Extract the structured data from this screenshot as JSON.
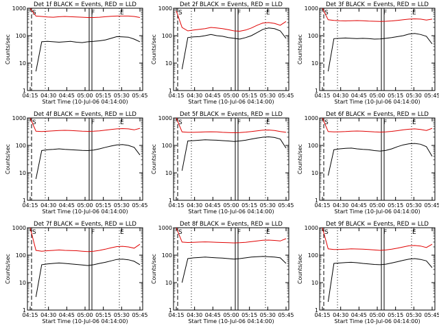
{
  "colors": {
    "events": "#000000",
    "lld": "#e00000",
    "axes": "#000000"
  },
  "chart_data": [
    {
      "type": "line",
      "title": "Det 1f BLACK = Events, RED = LLD",
      "xlabel": "Start Time (10-Jul-06 04:14:00)",
      "ylabel": "Counts/sec",
      "x_ticks": [
        "04:15",
        "04:30",
        "04:45",
        "05:00",
        "05:15",
        "05:30",
        "05:45"
      ],
      "y_ticks": [
        "1",
        "10",
        "100",
        "1000"
      ],
      "y_scale": "log",
      "ylim": [
        1,
        1000
      ],
      "markers": [
        "S",
        "F",
        "E"
      ],
      "series": [
        {
          "name": "Events",
          "values": [
            null,
            5,
            60,
            62,
            60,
            58,
            60,
            62,
            58,
            56,
            60,
            62,
            65,
            70,
            80,
            92,
            90,
            88,
            75,
            60
          ]
        },
        {
          "name": "LLD",
          "values": [
            1000,
            520,
            500,
            480,
            470,
            490,
            500,
            490,
            480,
            470,
            460,
            460,
            470,
            490,
            510,
            520,
            520,
            520,
            500,
            460
          ]
        }
      ]
    },
    {
      "type": "line",
      "title": "Det 2f BLACK = Events, RED = LLD",
      "xlabel": "Start Time (10-Jul-06 04:14:00)",
      "ylabel": "Counts/sec",
      "x_ticks": [
        "04:15",
        "04:30",
        "04:45",
        "05:00",
        "05:15",
        "05:30",
        "05:45"
      ],
      "y_ticks": [
        "1",
        "10",
        "100",
        "1000"
      ],
      "y_scale": "log",
      "ylim": [
        1,
        1000
      ],
      "markers": [
        "S",
        "F",
        "E"
      ],
      "series": [
        {
          "name": "Events",
          "values": [
            null,
            6,
            85,
            90,
            92,
            100,
            110,
            100,
            95,
            85,
            80,
            75,
            85,
            100,
            130,
            170,
            190,
            180,
            150,
            80
          ]
        },
        {
          "name": "LLD",
          "values": [
            800,
            200,
            150,
            160,
            170,
            180,
            200,
            190,
            180,
            165,
            150,
            145,
            160,
            190,
            240,
            290,
            300,
            280,
            240,
            330
          ]
        }
      ]
    },
    {
      "type": "line",
      "title": "Det 3f BLACK = Events, RED = LLD",
      "xlabel": "Start Time (10-Jul-06 04:14:00)",
      "ylabel": "Counts/sec",
      "x_ticks": [
        "04:15",
        "04:30",
        "04:45",
        "05:00",
        "05:15",
        "05:30",
        "05:45"
      ],
      "y_ticks": [
        "1",
        "10",
        "100",
        "1000"
      ],
      "y_scale": "log",
      "ylim": [
        1,
        1000
      ],
      "markers": [
        "S",
        "F",
        "E"
      ],
      "series": [
        {
          "name": "Events",
          "values": [
            null,
            5,
            78,
            80,
            82,
            80,
            78,
            80,
            78,
            75,
            76,
            80,
            85,
            92,
            100,
            115,
            120,
            110,
            95,
            50
          ]
        },
        {
          "name": "LLD",
          "values": [
            1000,
            380,
            360,
            350,
            345,
            350,
            355,
            350,
            340,
            335,
            330,
            335,
            345,
            360,
            380,
            400,
            410,
            400,
            370,
            400
          ]
        }
      ]
    },
    {
      "type": "line",
      "title": "Det 4f BLACK = Events, RED = LLD",
      "xlabel": "Start Time (10-Jul-06 04:14:00)",
      "ylabel": "Counts/sec",
      "x_ticks": [
        "04:15",
        "04:30",
        "04:45",
        "05:00",
        "05:15",
        "05:30",
        "05:45"
      ],
      "y_ticks": [
        "1",
        "10",
        "100",
        "1000"
      ],
      "y_scale": "log",
      "ylim": [
        1,
        1000
      ],
      "markers": [
        "S",
        "F",
        "E"
      ],
      "series": [
        {
          "name": "Events",
          "values": [
            null,
            6,
            65,
            70,
            72,
            75,
            72,
            70,
            68,
            66,
            65,
            68,
            75,
            85,
            95,
            105,
            108,
            100,
            85,
            45
          ]
        },
        {
          "name": "LLD",
          "values": [
            1000,
            330,
            320,
            330,
            340,
            350,
            355,
            350,
            340,
            330,
            325,
            330,
            340,
            360,
            380,
            400,
            410,
            400,
            370,
            420
          ]
        }
      ]
    },
    {
      "type": "line",
      "title": "Det 5f BLACK = Events, RED = LLD",
      "xlabel": "Start Time (10-Jul-06 04:14:00)",
      "ylabel": "Counts/sec",
      "x_ticks": [
        "04:15",
        "04:30",
        "04:45",
        "05:00",
        "05:15",
        "05:30",
        "05:45"
      ],
      "y_ticks": [
        "1",
        "10",
        "100",
        "1000"
      ],
      "y_scale": "log",
      "ylim": [
        1,
        1000
      ],
      "markers": [
        "S",
        "F",
        "E"
      ],
      "series": [
        {
          "name": "Events",
          "values": [
            null,
            12,
            145,
            150,
            155,
            160,
            158,
            155,
            150,
            145,
            140,
            145,
            155,
            170,
            185,
            200,
            205,
            195,
            170,
            80
          ]
        },
        {
          "name": "LLD",
          "values": [
            1000,
            310,
            300,
            300,
            305,
            310,
            315,
            310,
            300,
            295,
            290,
            295,
            305,
            320,
            340,
            360,
            365,
            350,
            320,
            300
          ]
        }
      ]
    },
    {
      "type": "line",
      "title": "Det 6f BLACK = Events, RED = LLD",
      "xlabel": "Start Time (10-Jul-06 04:14:00)",
      "ylabel": "Counts/sec",
      "x_ticks": [
        "04:15",
        "04:30",
        "04:45",
        "05:00",
        "05:15",
        "05:30",
        "05:45"
      ],
      "y_ticks": [
        "1",
        "10",
        "100",
        "1000"
      ],
      "y_scale": "log",
      "ylim": [
        1,
        1000
      ],
      "markers": [
        "S",
        "F",
        "E"
      ],
      "series": [
        {
          "name": "Events",
          "values": [
            null,
            8,
            70,
            75,
            78,
            80,
            75,
            72,
            70,
            65,
            62,
            66,
            75,
            90,
            105,
            115,
            118,
            110,
            90,
            40
          ]
        },
        {
          "name": "LLD",
          "values": [
            1000,
            320,
            310,
            315,
            320,
            330,
            335,
            330,
            320,
            310,
            305,
            310,
            325,
            345,
            370,
            390,
            400,
            380,
            350,
            420
          ]
        }
      ]
    },
    {
      "type": "line",
      "title": "Det 7f BLACK = Events, RED = LLD",
      "xlabel": "Start Time (10-Jul-06 04:14:00)",
      "ylabel": "Counts/sec",
      "x_ticks": [
        "04:15",
        "04:30",
        "04:45",
        "05:00",
        "05:15",
        "05:30",
        "05:45"
      ],
      "y_ticks": [
        "1",
        "10",
        "100",
        "1000"
      ],
      "y_scale": "log",
      "ylim": [
        1,
        1000
      ],
      "markers": [
        "S",
        "F",
        "E"
      ],
      "series": [
        {
          "name": "Events",
          "values": [
            null,
            3,
            45,
            48,
            50,
            52,
            50,
            48,
            46,
            44,
            42,
            45,
            50,
            55,
            62,
            70,
            72,
            68,
            60,
            45
          ]
        },
        {
          "name": "LLD",
          "values": [
            1000,
            150,
            140,
            145,
            150,
            155,
            150,
            148,
            145,
            140,
            135,
            140,
            150,
            165,
            185,
            205,
            210,
            200,
            180,
            250
          ]
        }
      ]
    },
    {
      "type": "line",
      "title": "Det 8f BLACK = Events, RED = LLD",
      "xlabel": "Start Time (10-Jul-06 04:14:00)",
      "ylabel": "Counts/sec",
      "x_ticks": [
        "04:15",
        "04:30",
        "04:45",
        "05:00",
        "05:15",
        "05:30",
        "05:45"
      ],
      "y_ticks": [
        "1",
        "10",
        "100",
        "1000"
      ],
      "y_scale": "log",
      "ylim": [
        1,
        1000
      ],
      "markers": [
        "S",
        "F",
        "E"
      ],
      "series": [
        {
          "name": "Events",
          "values": [
            null,
            10,
            75,
            80,
            82,
            85,
            82,
            80,
            78,
            75,
            72,
            75,
            80,
            85,
            88,
            90,
            88,
            85,
            80,
            50
          ]
        },
        {
          "name": "LLD",
          "values": [
            1000,
            300,
            290,
            295,
            300,
            305,
            300,
            295,
            290,
            285,
            280,
            285,
            295,
            310,
            330,
            350,
            355,
            345,
            330,
            400
          ]
        }
      ]
    },
    {
      "type": "line",
      "title": "Det 9f BLACK = Events, RED = LLD",
      "xlabel": "Start Time (10-Jul-06 04:14:00)",
      "ylabel": "Counts/sec",
      "x_ticks": [
        "04:15",
        "04:30",
        "04:45",
        "05:00",
        "05:15",
        "05:30",
        "05:45"
      ],
      "y_ticks": [
        "1",
        "10",
        "100",
        "1000"
      ],
      "y_scale": "log",
      "ylim": [
        1,
        1000
      ],
      "markers": [
        "S",
        "F",
        "E"
      ],
      "series": [
        {
          "name": "Events",
          "values": [
            null,
            2,
            50,
            52,
            54,
            55,
            53,
            50,
            48,
            46,
            45,
            47,
            52,
            58,
            65,
            72,
            75,
            70,
            62,
            35
          ]
        },
        {
          "name": "LLD",
          "values": [
            1000,
            170,
            160,
            162,
            165,
            170,
            168,
            165,
            160,
            155,
            150,
            155,
            165,
            180,
            200,
            220,
            225,
            215,
            190,
            250
          ]
        }
      ]
    }
  ]
}
